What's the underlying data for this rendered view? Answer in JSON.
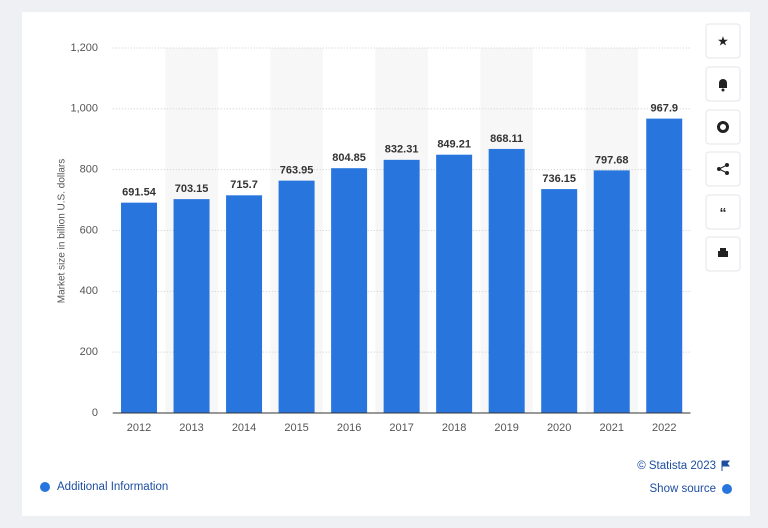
{
  "chart_data": {
    "type": "bar",
    "y_axis_label": "Market size in billion U.S. dollars",
    "categories": [
      "2012",
      "2013",
      "2014",
      "2015",
      "2016",
      "2017",
      "2018",
      "2019",
      "2020",
      "2021",
      "2022"
    ],
    "values": [
      691.54,
      703.15,
      715.7,
      763.95,
      804.85,
      832.31,
      849.21,
      868.11,
      736.15,
      797.68,
      967.9
    ],
    "color": "#2876dd",
    "ylim": [
      0,
      1200
    ],
    "yticks": [
      0,
      200,
      400,
      600,
      800,
      {
        "value": 1000,
        "label": "1,000"
      },
      {
        "value": 1200,
        "label": "1,200"
      }
    ],
    "grid": true
  },
  "footer": {
    "copyright": "© Statista 2023",
    "additional_info": "Additional Information",
    "show_source": "Show source"
  }
}
